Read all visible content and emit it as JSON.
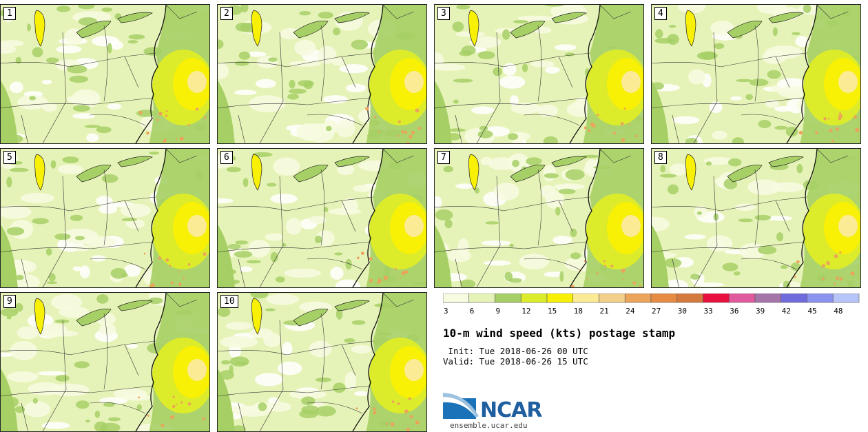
{
  "panels": [
    {
      "label": "1"
    },
    {
      "label": "2"
    },
    {
      "label": "3"
    },
    {
      "label": "4"
    },
    {
      "label": "5"
    },
    {
      "label": "6"
    },
    {
      "label": "7"
    },
    {
      "label": "8"
    },
    {
      "label": "9"
    },
    {
      "label": "10"
    }
  ],
  "legend": {
    "colors": [
      "#f7fbe0",
      "#e6f3b8",
      "#a6cf65",
      "#dcec2b",
      "#f8f005",
      "#fbeb94",
      "#f2cf8a",
      "#eca35a",
      "#e78a43",
      "#d57a3e",
      "#e8103e",
      "#e25a9e",
      "#a574a8",
      "#6f6bdc",
      "#8c93ef",
      "#b8c5f8"
    ],
    "tick_labels": [
      "3",
      "6",
      "9",
      "12",
      "15",
      "18",
      "21",
      "24",
      "27",
      "30",
      "33",
      "36",
      "39",
      "42",
      "45",
      "48"
    ]
  },
  "title": "10-m wind speed (kts) postage stamp",
  "init": " Init: Tue 2018-06-26 00 UTC",
  "valid": "Valid: Tue 2018-06-26 15 UTC",
  "logo": {
    "name": "NCAR",
    "url": "ensemble.ucar.edu"
  }
}
